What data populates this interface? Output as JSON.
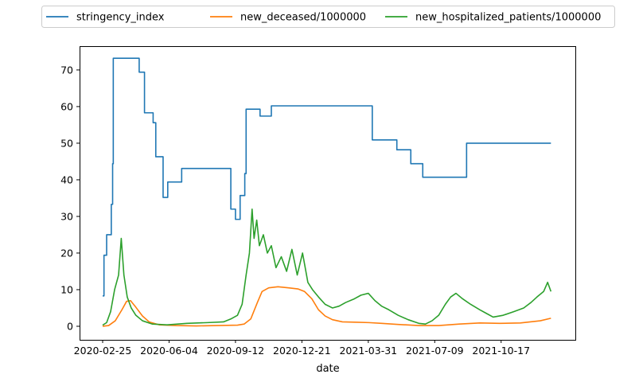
{
  "chart_data": {
    "type": "line",
    "title": "",
    "xlabel": "date",
    "ylabel": "",
    "x_range": [
      "2020-02-25",
      "2022-01-02"
    ],
    "ylim": [
      -3.7,
      76.5
    ],
    "x_ticks": [
      "2020-02-25",
      "2020-06-04",
      "2020-09-12",
      "2020-12-21",
      "2021-03-31",
      "2021-07-09",
      "2021-10-17"
    ],
    "y_ticks": [
      0,
      10,
      20,
      30,
      40,
      50,
      60,
      70
    ],
    "grid": false,
    "legend_position": "top, outside plot, 3 columns",
    "series": [
      {
        "name": "stringency_index",
        "color": "#1f77b4",
        "step": true,
        "points": [
          [
            "2020-02-25",
            8.3
          ],
          [
            "2020-02-27",
            19.4
          ],
          [
            "2020-03-02",
            25.0
          ],
          [
            "2020-03-09",
            33.3
          ],
          [
            "2020-03-11",
            44.4
          ],
          [
            "2020-03-12",
            73.2
          ],
          [
            "2020-04-20",
            69.4
          ],
          [
            "2020-04-28",
            58.3
          ],
          [
            "2020-05-11",
            55.6
          ],
          [
            "2020-05-15",
            46.3
          ],
          [
            "2020-05-26",
            35.2
          ],
          [
            "2020-06-02",
            39.4
          ],
          [
            "2020-06-23",
            43.1
          ],
          [
            "2020-09-05",
            32.0
          ],
          [
            "2020-09-12",
            29.2
          ],
          [
            "2020-09-19",
            35.7
          ],
          [
            "2020-09-26",
            41.7
          ],
          [
            "2020-09-28",
            59.3
          ],
          [
            "2020-10-19",
            57.4
          ],
          [
            "2020-11-05",
            60.2
          ],
          [
            "2021-04-06",
            50.9
          ],
          [
            "2021-05-13",
            48.2
          ],
          [
            "2021-06-03",
            44.4
          ],
          [
            "2021-06-21",
            40.7
          ],
          [
            "2021-08-26",
            50.0
          ],
          [
            "2021-12-31",
            50.0
          ]
        ]
      },
      {
        "name": "new_deceased/1000000",
        "color": "#ff7f0e",
        "points": [
          [
            "2020-02-25",
            0.0
          ],
          [
            "2020-03-05",
            0.2
          ],
          [
            "2020-03-15",
            1.5
          ],
          [
            "2020-03-25",
            4.5
          ],
          [
            "2020-04-01",
            6.8
          ],
          [
            "2020-04-07",
            7.0
          ],
          [
            "2020-04-15",
            5.2
          ],
          [
            "2020-04-25",
            2.8
          ],
          [
            "2020-05-05",
            1.2
          ],
          [
            "2020-05-20",
            0.4
          ],
          [
            "2020-06-15",
            0.2
          ],
          [
            "2020-07-15",
            0.1
          ],
          [
            "2020-08-15",
            0.2
          ],
          [
            "2020-09-15",
            0.3
          ],
          [
            "2020-09-25",
            0.6
          ],
          [
            "2020-10-05",
            2.0
          ],
          [
            "2020-10-15",
            6.5
          ],
          [
            "2020-10-22",
            9.5
          ],
          [
            "2020-11-01",
            10.5
          ],
          [
            "2020-11-15",
            10.8
          ],
          [
            "2020-12-01",
            10.5
          ],
          [
            "2020-12-15",
            10.2
          ],
          [
            "2020-12-25",
            9.5
          ],
          [
            "2021-01-05",
            7.5
          ],
          [
            "2021-01-15",
            4.5
          ],
          [
            "2021-01-25",
            2.8
          ],
          [
            "2021-02-05",
            1.8
          ],
          [
            "2021-02-20",
            1.2
          ],
          [
            "2021-03-15",
            1.1
          ],
          [
            "2021-04-01",
            1.0
          ],
          [
            "2021-04-20",
            0.8
          ],
          [
            "2021-05-15",
            0.5
          ],
          [
            "2021-06-15",
            0.2
          ],
          [
            "2021-07-15",
            0.2
          ],
          [
            "2021-08-15",
            0.6
          ],
          [
            "2021-09-15",
            0.9
          ],
          [
            "2021-10-15",
            0.8
          ],
          [
            "2021-11-15",
            0.9
          ],
          [
            "2021-12-15",
            1.5
          ],
          [
            "2021-12-31",
            2.2
          ]
        ]
      },
      {
        "name": "new_hospitalized_patients/1000000",
        "color": "#2ca02c",
        "points": [
          [
            "2020-02-25",
            0.3
          ],
          [
            "2020-03-02",
            1.0
          ],
          [
            "2020-03-08",
            4.0
          ],
          [
            "2020-03-14",
            10.0
          ],
          [
            "2020-03-20",
            14.0
          ],
          [
            "2020-03-24",
            24.0
          ],
          [
            "2020-03-28",
            14.0
          ],
          [
            "2020-04-02",
            8.0
          ],
          [
            "2020-04-08",
            5.0
          ],
          [
            "2020-04-15",
            3.0
          ],
          [
            "2020-04-25",
            1.5
          ],
          [
            "2020-05-10",
            0.6
          ],
          [
            "2020-06-01",
            0.4
          ],
          [
            "2020-07-01",
            0.8
          ],
          [
            "2020-08-01",
            1.0
          ],
          [
            "2020-08-25",
            1.2
          ],
          [
            "2020-09-05",
            2.0
          ],
          [
            "2020-09-15",
            3.0
          ],
          [
            "2020-09-22",
            6.0
          ],
          [
            "2020-09-28",
            14.0
          ],
          [
            "2020-10-03",
            20.0
          ],
          [
            "2020-10-07",
            32.0
          ],
          [
            "2020-10-10",
            24.0
          ],
          [
            "2020-10-14",
            29.0
          ],
          [
            "2020-10-18",
            22.0
          ],
          [
            "2020-10-24",
            25.0
          ],
          [
            "2020-10-30",
            20.0
          ],
          [
            "2020-11-05",
            22.0
          ],
          [
            "2020-11-12",
            16.0
          ],
          [
            "2020-11-20",
            19.0
          ],
          [
            "2020-11-28",
            15.0
          ],
          [
            "2020-12-06",
            21.0
          ],
          [
            "2020-12-14",
            14.0
          ],
          [
            "2020-12-22",
            20.0
          ],
          [
            "2020-12-30",
            12.0
          ],
          [
            "2021-01-06",
            10.0
          ],
          [
            "2021-01-15",
            8.0
          ],
          [
            "2021-01-25",
            6.0
          ],
          [
            "2021-02-05",
            5.0
          ],
          [
            "2021-02-15",
            5.5
          ],
          [
            "2021-02-25",
            6.5
          ],
          [
            "2021-03-10",
            7.5
          ],
          [
            "2021-03-20",
            8.5
          ],
          [
            "2021-03-31",
            9.0
          ],
          [
            "2021-04-10",
            7.0
          ],
          [
            "2021-04-20",
            5.5
          ],
          [
            "2021-05-01",
            4.5
          ],
          [
            "2021-05-15",
            3.0
          ],
          [
            "2021-05-30",
            1.8
          ],
          [
            "2021-06-15",
            0.8
          ],
          [
            "2021-06-25",
            0.6
          ],
          [
            "2021-07-05",
            1.5
          ],
          [
            "2021-07-15",
            3.0
          ],
          [
            "2021-07-25",
            6.0
          ],
          [
            "2021-08-02",
            8.0
          ],
          [
            "2021-08-10",
            9.0
          ],
          [
            "2021-08-20",
            7.5
          ],
          [
            "2021-09-01",
            6.0
          ],
          [
            "2021-09-15",
            4.5
          ],
          [
            "2021-09-25",
            3.5
          ],
          [
            "2021-10-05",
            2.5
          ],
          [
            "2021-10-20",
            3.0
          ],
          [
            "2021-11-05",
            4.0
          ],
          [
            "2021-11-20",
            5.0
          ],
          [
            "2021-12-01",
            6.5
          ],
          [
            "2021-12-10",
            8.0
          ],
          [
            "2021-12-20",
            9.5
          ],
          [
            "2021-12-26",
            12.0
          ],
          [
            "2021-12-31",
            9.5
          ]
        ]
      }
    ]
  }
}
